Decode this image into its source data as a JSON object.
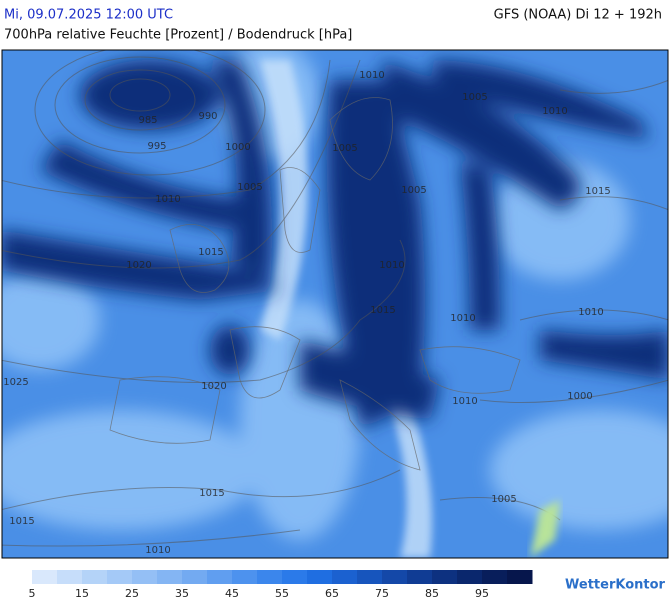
{
  "header": {
    "timestamp": "Mi, 09.07.2025 12:00 UTC",
    "model": "GFS (NOAA) Di 12 + 192h",
    "subtitle": "700hPa relative Feuchte [Prozent] / Bodendruck [hPa]"
  },
  "isobar_labels": [
    "1010",
    "1005",
    "1010",
    "985",
    "990",
    "995",
    "1000",
    "1005",
    "1005",
    "1010",
    "1005",
    "1015",
    "1015",
    "1020",
    "1010",
    "1015",
    "1010",
    "1010",
    "1025",
    "1020",
    "1010",
    "1000",
    "1015",
    "1005",
    "1015",
    "1010"
  ],
  "legend": {
    "labels": [
      5,
      15,
      25,
      35,
      45,
      55,
      65,
      75,
      85,
      95
    ],
    "colors": [
      "#d9e8fc",
      "#c6ddfa",
      "#b4d3f8",
      "#a4c9f7",
      "#94bff5",
      "#84b5f3",
      "#73aaf1",
      "#609ef0",
      "#4d92ee",
      "#3b86ec",
      "#2b7ae9",
      "#1f6ee1",
      "#1b61d0",
      "#1755bd",
      "#1448a8",
      "#103c94",
      "#0d3180",
      "#0a276d",
      "#081e5b",
      "#06164c"
    ]
  },
  "logo": "WetterKontor"
}
